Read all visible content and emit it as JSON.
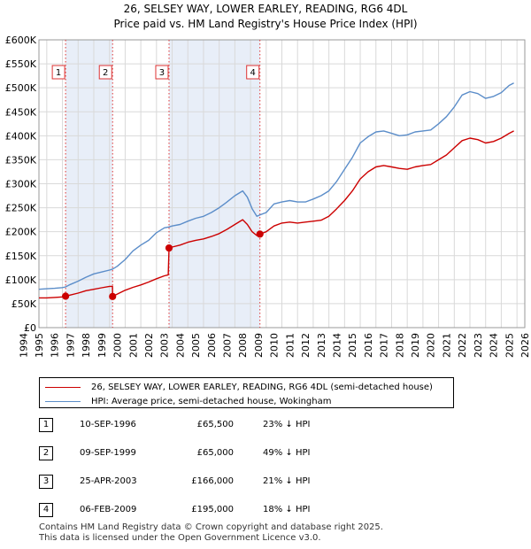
{
  "chart_data": {
    "type": "line",
    "title": "26, SELSEY WAY, LOWER EARLEY, READING, RG6 4DL",
    "subtitle": "Price paid vs. HM Land Registry's House Price Index (HPI)",
    "xlabel": "",
    "ylabel": "",
    "xlim": [
      1995.0,
      2026.0
    ],
    "ylim": [
      0,
      600000
    ],
    "grid": true,
    "x_ticks": [
      1994,
      1995,
      1996,
      1997,
      1998,
      1999,
      2000,
      2001,
      2002,
      2003,
      2004,
      2005,
      2006,
      2007,
      2008,
      2009,
      2010,
      2011,
      2012,
      2013,
      2014,
      2015,
      2016,
      2017,
      2018,
      2019,
      2020,
      2021,
      2022,
      2023,
      2024,
      2025,
      2026
    ],
    "y_ticks": [
      {
        "value": 0,
        "label": "£0"
      },
      {
        "value": 50000,
        "label": "£50K"
      },
      {
        "value": 100000,
        "label": "£100K"
      },
      {
        "value": 150000,
        "label": "£150K"
      },
      {
        "value": 200000,
        "label": "£200K"
      },
      {
        "value": 250000,
        "label": "£250K"
      },
      {
        "value": 300000,
        "label": "£300K"
      },
      {
        "value": 350000,
        "label": "£350K"
      },
      {
        "value": 400000,
        "label": "£400K"
      },
      {
        "value": 450000,
        "label": "£450K"
      },
      {
        "value": 500000,
        "label": "£500K"
      },
      {
        "value": 550000,
        "label": "£550K"
      },
      {
        "value": 600000,
        "label": "£600K"
      }
    ],
    "shaded_periods": [
      [
        1996.7,
        1999.7
      ],
      [
        2003.3,
        2009.1
      ]
    ],
    "markers": [
      {
        "label": "1",
        "x": 1996.7,
        "y": 65500
      },
      {
        "label": "2",
        "x": 1999.7,
        "y": 65000
      },
      {
        "label": "3",
        "x": 2003.3,
        "y": 166000
      },
      {
        "label": "4",
        "x": 2009.1,
        "y": 195000
      }
    ],
    "series": [
      {
        "name": "26, SELSEY WAY, LOWER EARLEY, READING, RG6 4DL (semi-detached house)",
        "color": "#cc0000",
        "x": [
          1995.0,
          1995.5,
          1996.0,
          1996.5,
          1996.7,
          1997.0,
          1997.5,
          1998.0,
          1998.5,
          1999.0,
          1999.5,
          1999.69,
          1999.7,
          2000.0,
          2000.5,
          2001.0,
          2001.5,
          2002.0,
          2002.5,
          2003.0,
          2003.25,
          2003.3,
          2003.5,
          2004.0,
          2004.5,
          2005.0,
          2005.5,
          2006.0,
          2006.5,
          2007.0,
          2007.5,
          2008.0,
          2008.3,
          2008.6,
          2008.9,
          2009.1,
          2009.5,
          2010.0,
          2010.5,
          2011.0,
          2011.5,
          2012.0,
          2012.5,
          2013.0,
          2013.5,
          2014.0,
          2014.5,
          2015.0,
          2015.5,
          2016.0,
          2016.5,
          2017.0,
          2017.5,
          2018.0,
          2018.5,
          2019.0,
          2019.5,
          2020.0,
          2020.5,
          2021.0,
          2021.5,
          2022.0,
          2022.5,
          2023.0,
          2023.5,
          2024.0,
          2024.5,
          2025.0,
          2025.3
        ],
        "y": [
          62000,
          62000,
          63000,
          64000,
          65500,
          68000,
          72000,
          77000,
          80000,
          83000,
          86000,
          86000,
          65000,
          70000,
          78000,
          84000,
          89000,
          95000,
          102000,
          108000,
          110000,
          166000,
          168000,
          172000,
          178000,
          182000,
          185000,
          190000,
          196000,
          205000,
          215000,
          225000,
          215000,
          200000,
          192000,
          195000,
          200000,
          212000,
          218000,
          220000,
          218000,
          220000,
          222000,
          224000,
          232000,
          248000,
          265000,
          285000,
          310000,
          325000,
          335000,
          338000,
          335000,
          332000,
          330000,
          335000,
          338000,
          340000,
          350000,
          360000,
          375000,
          390000,
          395000,
          392000,
          385000,
          388000,
          395000,
          405000,
          410000
        ]
      },
      {
        "name": "HPI: Average price, semi-detached house, Wokingham",
        "color": "#5b8dc9",
        "x": [
          1995.0,
          1995.5,
          1996.0,
          1996.5,
          1996.7,
          1997.0,
          1997.5,
          1998.0,
          1998.5,
          1999.0,
          1999.5,
          1999.7,
          2000.0,
          2000.5,
          2001.0,
          2001.5,
          2002.0,
          2002.5,
          2003.0,
          2003.3,
          2003.5,
          2004.0,
          2004.5,
          2005.0,
          2005.5,
          2006.0,
          2006.5,
          2007.0,
          2007.5,
          2008.0,
          2008.3,
          2008.6,
          2008.9,
          2009.1,
          2009.5,
          2010.0,
          2010.5,
          2011.0,
          2011.5,
          2012.0,
          2012.5,
          2013.0,
          2013.5,
          2014.0,
          2014.5,
          2015.0,
          2015.5,
          2016.0,
          2016.5,
          2017.0,
          2017.5,
          2018.0,
          2018.5,
          2019.0,
          2019.5,
          2020.0,
          2020.5,
          2021.0,
          2021.5,
          2022.0,
          2022.5,
          2023.0,
          2023.5,
          2024.0,
          2024.5,
          2025.0,
          2025.3
        ],
        "y": [
          80000,
          81000,
          82000,
          83500,
          85000,
          90000,
          97000,
          105000,
          112000,
          116000,
          120000,
          122000,
          128000,
          142000,
          160000,
          172000,
          182000,
          198000,
          208000,
          210000,
          212000,
          215000,
          222000,
          228000,
          232000,
          240000,
          250000,
          262000,
          275000,
          285000,
          272000,
          248000,
          232000,
          235000,
          240000,
          258000,
          262000,
          265000,
          262000,
          262000,
          268000,
          275000,
          285000,
          305000,
          330000,
          355000,
          385000,
          398000,
          408000,
          410000,
          405000,
          400000,
          402000,
          408000,
          410000,
          412000,
          425000,
          440000,
          460000,
          485000,
          492000,
          488000,
          478000,
          482000,
          490000,
          505000,
          510000
        ]
      }
    ]
  },
  "legend": {
    "red_label": "26, SELSEY WAY, LOWER EARLEY, READING, RG6 4DL (semi-detached house)",
    "blue_label": "HPI: Average price, semi-detached house, Wokingham",
    "red_color": "#cc0000",
    "blue_color": "#5b8dc9"
  },
  "sales": [
    {
      "num": "1",
      "date": "10-SEP-1996",
      "price": "£65,500",
      "hpi": "23% ↓ HPI"
    },
    {
      "num": "2",
      "date": "09-SEP-1999",
      "price": "£65,000",
      "hpi": "49% ↓ HPI"
    },
    {
      "num": "3",
      "date": "25-APR-2003",
      "price": "£166,000",
      "hpi": "21% ↓ HPI"
    },
    {
      "num": "4",
      "date": "06-FEB-2009",
      "price": "£195,000",
      "hpi": "18% ↓ HPI"
    }
  ],
  "footer": {
    "line1": "Contains HM Land Registry data © Crown copyright and database right 2025.",
    "line2": "This data is licensed under the Open Government Licence v3.0."
  }
}
